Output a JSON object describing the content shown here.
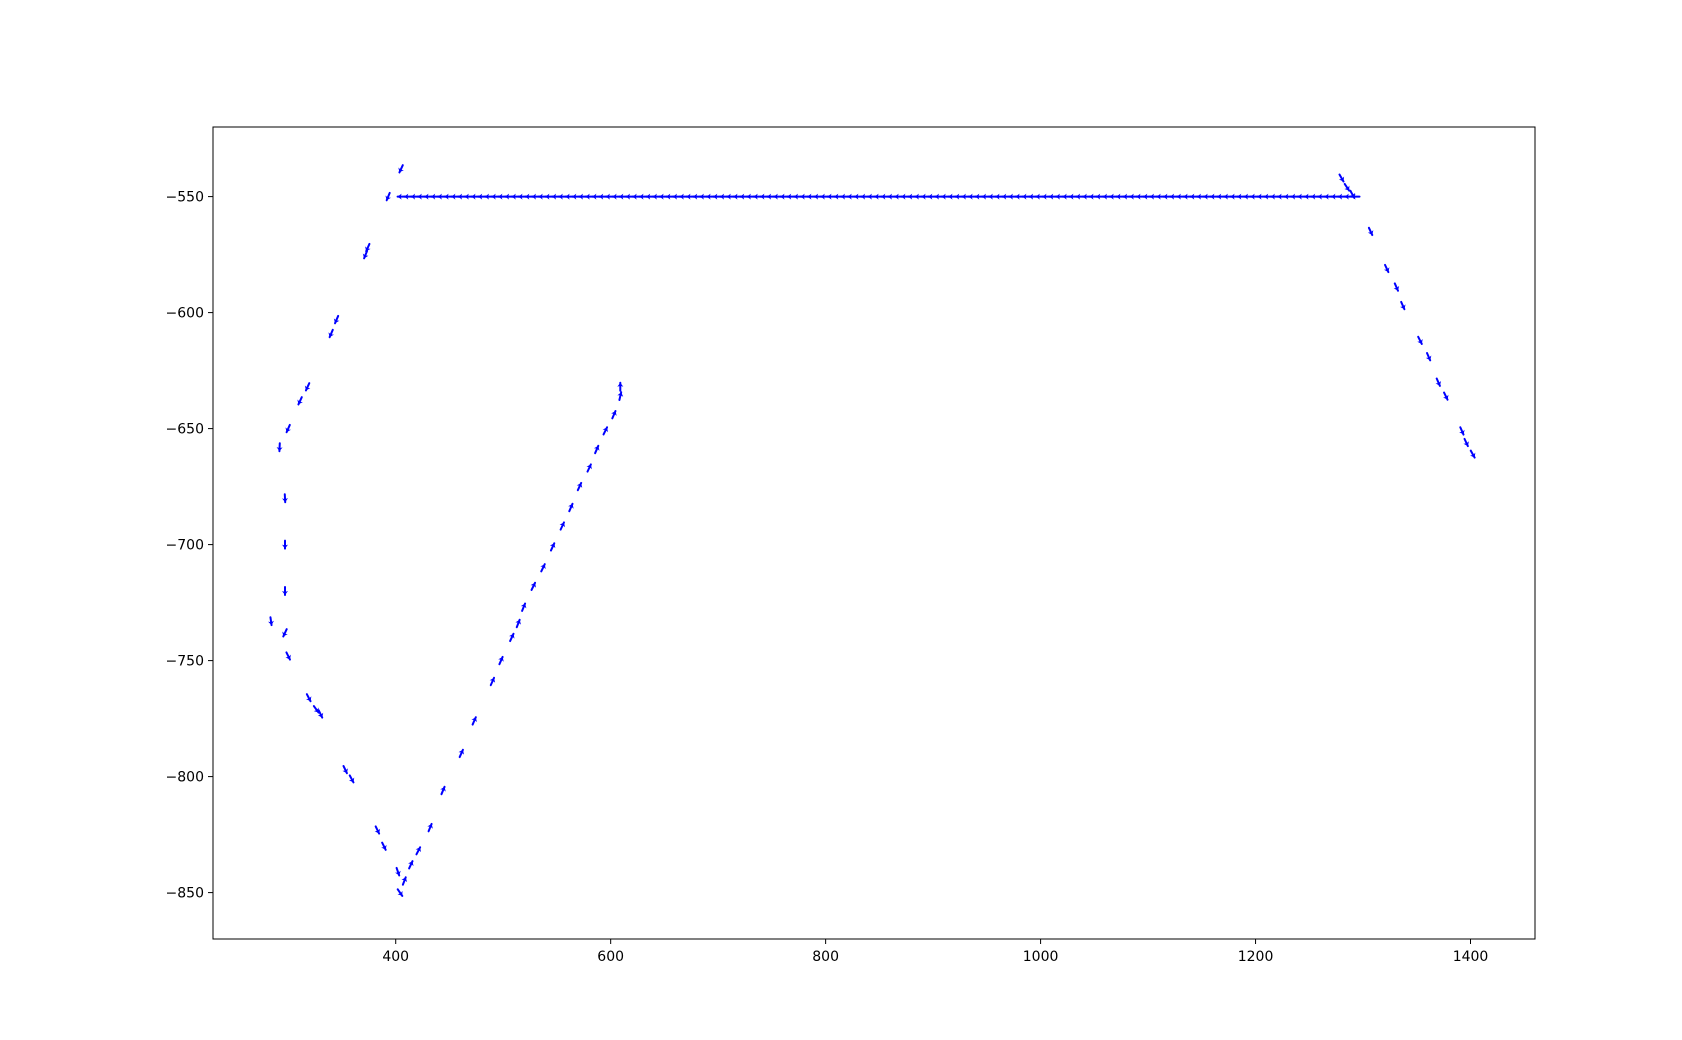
{
  "chart_data": {
    "type": "scatter",
    "marker": "arrow",
    "title": "",
    "xlabel": "",
    "ylabel": "",
    "xlim": [
      230,
      1460
    ],
    "ylim": [
      -870,
      -520
    ],
    "x_ticks": [
      400,
      600,
      800,
      1000,
      1200,
      1400
    ],
    "y_ticks": [
      -550,
      -600,
      -650,
      -700,
      -750,
      -800,
      -850
    ],
    "grid": false,
    "legend": "none",
    "color": "#0000ff",
    "series": [
      {
        "points": [
          [
            405,
            -538
          ],
          [
            393,
            -550
          ],
          [
            372,
            -575
          ],
          [
            374,
            -572
          ],
          [
            345,
            -603
          ],
          [
            340,
            -609
          ],
          [
            318,
            -632
          ],
          [
            311,
            -638
          ],
          [
            300,
            -650
          ],
          [
            292,
            -658
          ],
          [
            297,
            -680
          ],
          [
            297,
            -700
          ],
          [
            297,
            -720
          ],
          [
            297,
            -738
          ],
          [
            284,
            -733
          ],
          [
            300,
            -748
          ],
          [
            319,
            -766
          ],
          [
            326,
            -771
          ],
          [
            330,
            -773
          ],
          [
            353,
            -797
          ],
          [
            359,
            -801
          ],
          [
            383,
            -823
          ],
          [
            389,
            -830
          ],
          [
            402,
            -841
          ],
          [
            404,
            -850
          ],
          [
            408,
            -845
          ],
          [
            414,
            -838
          ],
          [
            421,
            -832
          ],
          [
            432,
            -822
          ],
          [
            444,
            -806
          ],
          [
            461,
            -790
          ],
          [
            473,
            -776
          ],
          [
            490,
            -759
          ],
          [
            498,
            -750
          ],
          [
            508,
            -740
          ],
          [
            514,
            -734
          ],
          [
            519,
            -727
          ],
          [
            528,
            -718
          ],
          [
            537,
            -710
          ],
          [
            546,
            -701
          ],
          [
            555,
            -692
          ],
          [
            563,
            -684
          ],
          [
            571,
            -675
          ],
          [
            580,
            -667
          ],
          [
            587,
            -659
          ],
          [
            595,
            -651
          ],
          [
            603,
            -644
          ],
          [
            609,
            -636
          ],
          [
            609,
            -632
          ]
        ]
      },
      {
        "points": [
          [
            1280,
            -542
          ],
          [
            1285,
            -546
          ],
          [
            1290,
            -549
          ],
          [
            1307,
            -565
          ],
          [
            1322,
            -581
          ],
          [
            1331,
            -589
          ],
          [
            1337,
            -597
          ],
          [
            1353,
            -612
          ],
          [
            1361,
            -619
          ],
          [
            1370,
            -630
          ],
          [
            1377,
            -636
          ],
          [
            1392,
            -651
          ],
          [
            1396,
            -656
          ],
          [
            1402,
            -661
          ]
        ]
      },
      {
        "line": {
          "x_start": 1293,
          "x_end": 400,
          "step": 6.25,
          "y": -550
        }
      }
    ]
  }
}
